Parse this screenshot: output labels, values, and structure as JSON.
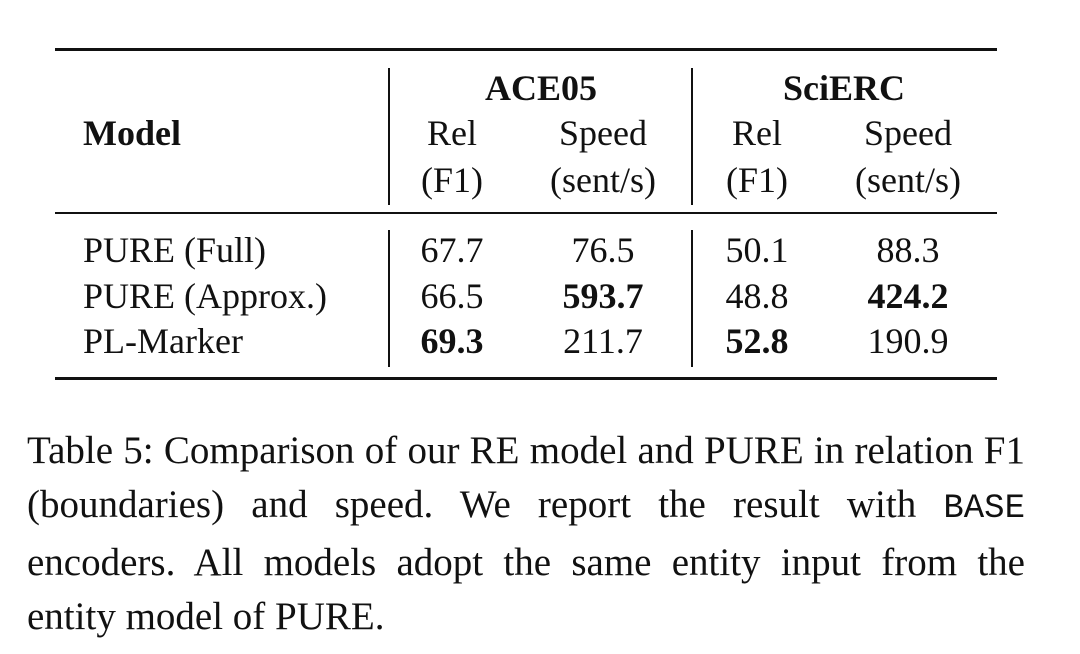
{
  "table": {
    "header": {
      "model": "Model",
      "groups": [
        "ACE05",
        "SciERC"
      ],
      "columns": [
        {
          "line1": "Rel",
          "line2": "(F1)"
        },
        {
          "line1": "Speed",
          "line2": "(sent/s)"
        },
        {
          "line1": "Rel",
          "line2": "(F1)"
        },
        {
          "line1": "Speed",
          "line2": "(sent/s)"
        }
      ]
    },
    "rows": [
      {
        "model": "PURE (Full)",
        "cells": [
          "67.7",
          "76.5",
          "50.1",
          "88.3"
        ],
        "bold": [
          false,
          false,
          false,
          false
        ]
      },
      {
        "model": "PURE (Approx.)",
        "cells": [
          "66.5",
          "593.7",
          "48.8",
          "424.2"
        ],
        "bold": [
          false,
          true,
          false,
          true
        ]
      },
      {
        "model": "PL-Marker",
        "cells": [
          "69.3",
          "211.7",
          "52.8",
          "190.9"
        ],
        "bold": [
          true,
          false,
          true,
          false
        ]
      }
    ]
  },
  "caption": {
    "before": "Table 5: Comparison of our RE model and PURE in relation F1 (boundaries) and speed. We report the result with",
    "code": "BASE",
    "after": "encoders. All models adopt the same entity input from the entity model of PURE."
  }
}
